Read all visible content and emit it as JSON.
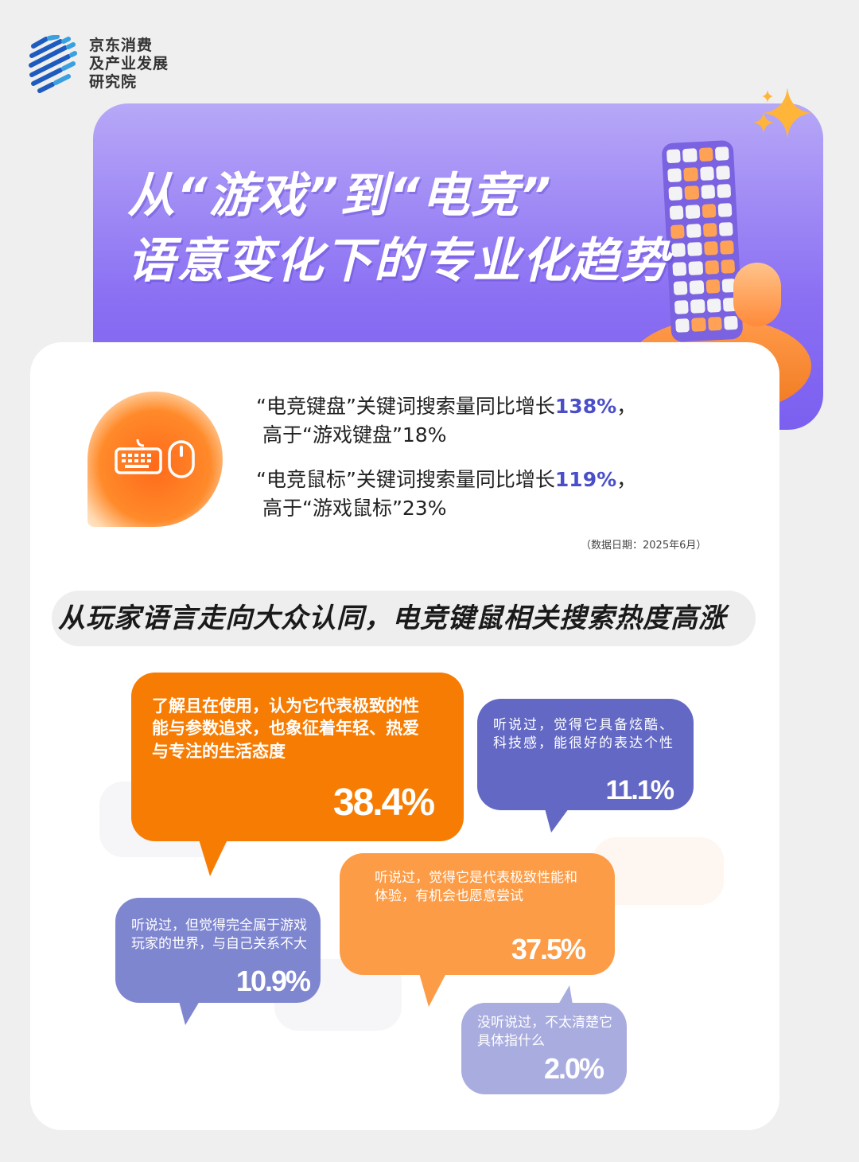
{
  "brand": {
    "lines": [
      "京东消费",
      "及产业发展",
      "研究院"
    ]
  },
  "header": {
    "title_line1": "从“游戏”到“电竞”",
    "title_line2": "语意变化下的专业化趋势"
  },
  "stats": [
    {
      "prefix": "“电竞键盘”关键词搜索量同比增长",
      "value": "138%",
      "suffix": "，",
      "line2": "高于“游戏键盘”18%"
    },
    {
      "prefix": "“电竞鼠标”关键词搜索量同比增长",
      "value": "119%",
      "suffix": "，",
      "line2": "高于“游戏鼠标”23%"
    }
  ],
  "note": "（数据日期：2025年6月）",
  "section_heading": "从玩家语言走向大众认同，电竞键鼠相关搜索热度高涨",
  "bubbles": [
    {
      "text": "了解且在使用，认为它代表极致的性能与参数追求，也象征着年轻、热爱与专注的生活态度",
      "value": "38.4%",
      "color": "#f67c03"
    },
    {
      "text": "听说过，觉得它具备炫酷、科技感，能很好的表达个性",
      "value": "11.1%",
      "color": "#6268c4"
    },
    {
      "text": "听说过，觉得它是代表极致性能和体验，有机会也愿意尝试",
      "value": "37.5%",
      "color": "#fc9c47"
    },
    {
      "text": "听说过，但觉得完全属于游戏玩家的世界，与自己关系不大",
      "value": "10.9%",
      "color": "#7f86d0"
    },
    {
      "text": "没听说过，不太清楚它具体指什么",
      "value": "2.0%",
      "color": "#a9acdf"
    }
  ],
  "colors": {
    "accent_purple": "#7b5ff0",
    "highlight": "#4a4fc9",
    "orange": "#f67c03"
  },
  "icons": [
    "keyboard-icon",
    "mouse-icon",
    "sparkle-icon"
  ]
}
